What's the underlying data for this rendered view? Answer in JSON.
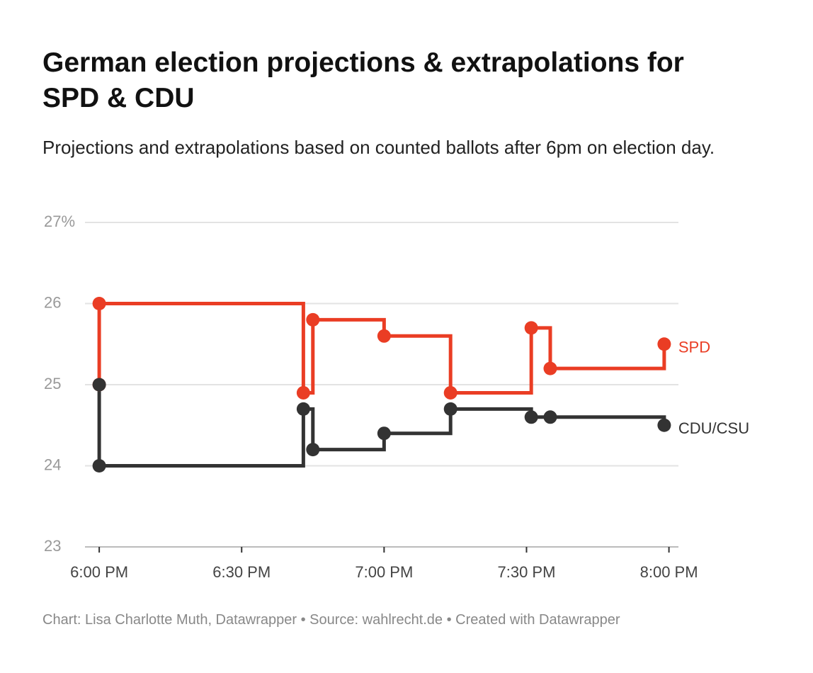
{
  "chart_data": {
    "type": "step",
    "title": "German election projections & extrapolations for SPD & CDU",
    "subtitle": "Projections and extrapolations based on counted ballots after 6pm on election day.",
    "footer": "Chart: Lisa Charlotte Muth, Datawrapper • Source: wahlrecht.de • Created with Datawrapper",
    "x": [
      "18:00",
      "18:00",
      "18:43",
      "18:45",
      "19:00",
      "19:14",
      "19:31",
      "19:35",
      "19:59"
    ],
    "xlim": [
      "17:57",
      "20:02"
    ],
    "xticks": [
      {
        "value": "18:00",
        "label": "6:00 PM"
      },
      {
        "value": "18:30",
        "label": "6:30 PM"
      },
      {
        "value": "19:00",
        "label": "7:00 PM"
      },
      {
        "value": "19:30",
        "label": "7:30 PM"
      },
      {
        "value": "20:00",
        "label": "8:00 PM"
      }
    ],
    "ylim": [
      23,
      27
    ],
    "yticks": [
      23,
      24,
      25,
      26,
      {
        "value": 27,
        "label": "27%"
      }
    ],
    "grid": true,
    "series": [
      {
        "name": "SPD",
        "color": "#ea3d24",
        "values": [
          25,
          26,
          24.9,
          25.8,
          25.6,
          24.9,
          25.7,
          25.2,
          25.5
        ]
      },
      {
        "name": "CDU/CSU",
        "color": "#333333",
        "values": [
          25,
          24,
          24.7,
          24.2,
          24.4,
          24.7,
          24.6,
          24.6,
          24.5
        ]
      }
    ]
  }
}
